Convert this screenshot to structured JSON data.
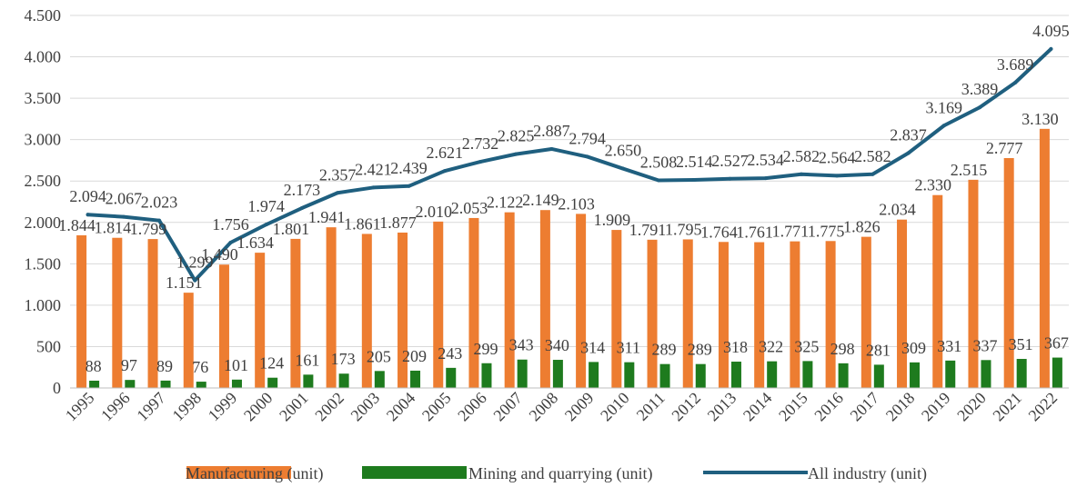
{
  "chart_data": {
    "type": "bar",
    "categories": [
      "1995",
      "1996",
      "1997",
      "1998",
      "1999",
      "2000",
      "2001",
      "2002",
      "2003",
      "2004",
      "2005",
      "2006",
      "2007",
      "2008",
      "2009",
      "2010",
      "2011",
      "2012",
      "2013",
      "2014",
      "2015",
      "2016",
      "2017",
      "2018",
      "2019",
      "2020",
      "2021",
      "2022"
    ],
    "series": [
      {
        "name": "Manufacturing (unit)",
        "type": "bar",
        "color": "#ED7D31",
        "values": [
          1844,
          1814,
          1799,
          1151,
          1490,
          1634,
          1801,
          1941,
          1861,
          1877,
          2010,
          2053,
          2122,
          2149,
          2103,
          1909,
          1791,
          1795,
          1764,
          1761,
          1771,
          1775,
          1826,
          2034,
          2330,
          2515,
          2777,
          3130
        ],
        "labels": [
          "1.844",
          "1.814",
          "1.799",
          "1.151",
          "1.490",
          "1.634",
          "1.801",
          "1.941",
          "1.861",
          "1.877",
          "2.010",
          "2.053",
          "2.122",
          "2.149",
          "2.103",
          "1.909",
          "1.791",
          "1.795",
          "1.764",
          "1.761",
          "1.771",
          "1.775",
          "1.826",
          "2.034",
          "2.330",
          "2.515",
          "2.777",
          "3.130"
        ]
      },
      {
        "name": "Mining and quarrying (unit)",
        "type": "bar",
        "color": "#1E7B1E",
        "values": [
          88,
          97,
          89,
          76,
          101,
          124,
          161,
          173,
          205,
          209,
          243,
          299,
          343,
          340,
          314,
          311,
          289,
          289,
          318,
          322,
          325,
          298,
          281,
          309,
          331,
          337,
          351,
          367
        ],
        "labels": [
          "88",
          "97",
          "89",
          "76",
          "101",
          "124",
          "161",
          "173",
          "205",
          "209",
          "243",
          "299",
          "343",
          "340",
          "314",
          "311",
          "289",
          "289",
          "318",
          "322",
          "325",
          "298",
          "281",
          "309",
          "331",
          "337",
          "351",
          "367"
        ]
      },
      {
        "name": "All industry (unit)",
        "type": "line",
        "color": "#1F5F7F",
        "values": [
          2094,
          2067,
          2023,
          1299,
          1756,
          1974,
          2173,
          2357,
          2421,
          2439,
          2621,
          2732,
          2825,
          2887,
          2794,
          2650,
          2508,
          2514,
          2527,
          2534,
          2582,
          2564,
          2582,
          2837,
          3169,
          3389,
          3689,
          4095
        ],
        "labels": [
          "2.094",
          "2.067",
          "2.023",
          "1.299",
          "1.756",
          "1.974",
          "2.173",
          "2.357",
          "2.421",
          "2.439",
          "2.621",
          "2.732",
          "2.825",
          "2.887",
          "2.794",
          "2.650",
          "2.508",
          "2.514",
          "2.527",
          "2.534",
          "2.582",
          "2.564",
          "2.582",
          "2.837",
          "3.169",
          "3.389",
          "3.689",
          "4.095"
        ]
      }
    ],
    "ylim": [
      0,
      4500
    ],
    "yticks": [
      {
        "value": 0,
        "label": "0"
      },
      {
        "value": 500,
        "label": "500"
      },
      {
        "value": 1000,
        "label": "1.000"
      },
      {
        "value": 1500,
        "label": "1.500"
      },
      {
        "value": 2000,
        "label": "2.000"
      },
      {
        "value": 2500,
        "label": "2.500"
      },
      {
        "value": 3000,
        "label": "3.000"
      },
      {
        "value": 3500,
        "label": "3.500"
      },
      {
        "value": 4000,
        "label": "4.000"
      },
      {
        "value": 4500,
        "label": "4.500"
      }
    ],
    "title": "",
    "xlabel": "",
    "ylabel": "",
    "grid": true,
    "legend_position": "bottom"
  }
}
